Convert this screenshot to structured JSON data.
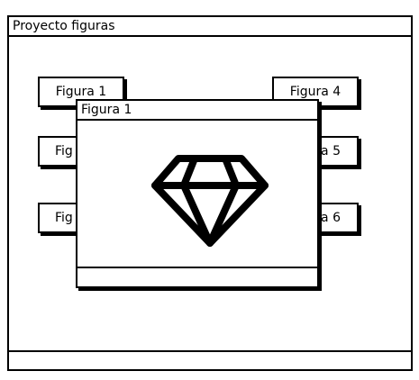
{
  "app": {
    "title": "Proyecto figuras"
  },
  "buttons": {
    "figura1": "Figura 1",
    "figura2": "Fig",
    "figura3": "Fig",
    "figura4": "Figura 4",
    "figura5": "ra 5",
    "figura6": "ra 6"
  },
  "dialog": {
    "title": "Figura 1",
    "icon": "diamond-icon"
  }
}
